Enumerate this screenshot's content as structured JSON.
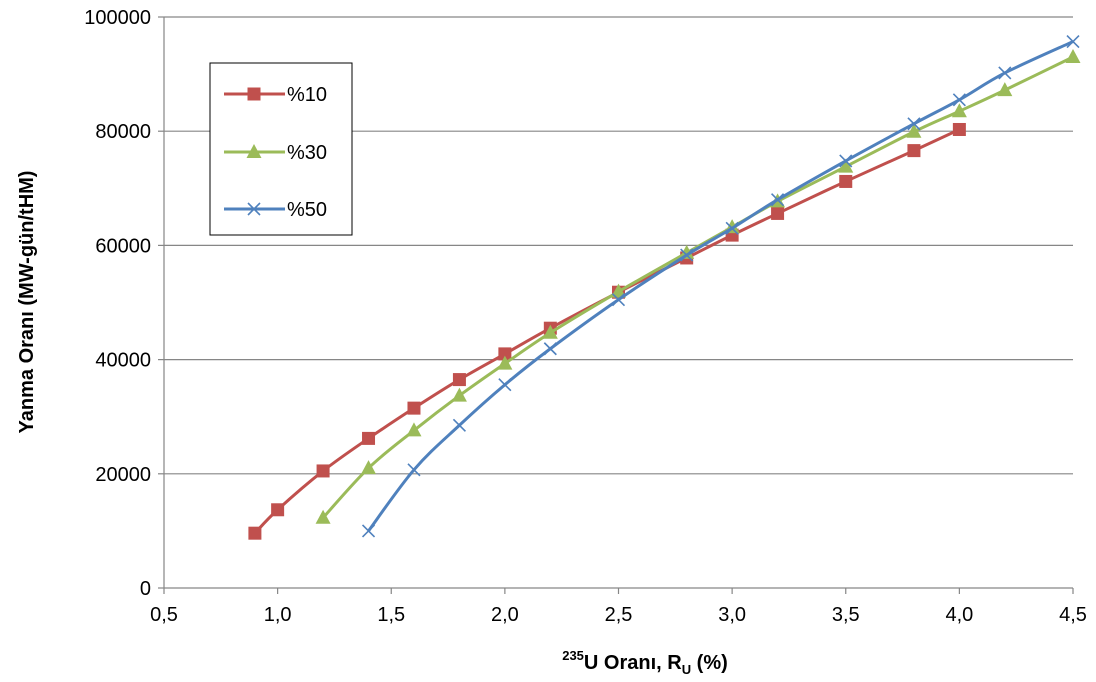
{
  "chart_data": {
    "type": "line",
    "xlabel": {
      "pre": "",
      "sup": "235",
      "mid": "U Oranı, R",
      "sub": "U",
      "post": " (%)"
    },
    "ylabel": "Yanma Oranı (MW-gün/tHM)",
    "xlim": [
      0.5,
      4.5
    ],
    "ylim": [
      0,
      100000
    ],
    "xticks": [
      0.5,
      1.0,
      1.5,
      2.0,
      2.5,
      3.0,
      3.5,
      4.0,
      4.5
    ],
    "xtick_labels": [
      "0,5",
      "1,0",
      "1,5",
      "2,0",
      "2,5",
      "3,0",
      "3,5",
      "4,0",
      "4,5"
    ],
    "yticks": [
      0,
      20000,
      40000,
      60000,
      80000,
      100000
    ],
    "ytick_labels": [
      "0",
      "20000",
      "40000",
      "60000",
      "80000",
      "100000"
    ],
    "grid": "horizontal",
    "legend_position": "top-left",
    "series": [
      {
        "name": "%10",
        "color": "#C0504D",
        "marker": "square",
        "x": [
          0.9,
          1.0,
          1.2,
          1.4,
          1.6,
          1.8,
          2.0,
          2.2,
          2.5,
          2.8,
          3.0,
          3.2,
          3.5,
          3.8,
          4.0
        ],
        "y": [
          9600,
          13700,
          20500,
          26200,
          31500,
          36500,
          41000,
          45500,
          51800,
          57800,
          61800,
          65600,
          71200,
          76600,
          80300
        ]
      },
      {
        "name": "%30",
        "color": "#9BBB59",
        "marker": "triangle",
        "x": [
          1.2,
          1.4,
          1.6,
          1.8,
          2.0,
          2.2,
          2.5,
          2.8,
          3.0,
          3.2,
          3.5,
          3.8,
          4.0,
          4.2,
          4.5
        ],
        "y": [
          12300,
          21000,
          27600,
          33700,
          39300,
          44700,
          51900,
          58700,
          63200,
          67700,
          73800,
          79900,
          83500,
          87200,
          93000
        ]
      },
      {
        "name": "%50",
        "color": "#4F81BD",
        "marker": "x",
        "x": [
          1.4,
          1.6,
          1.8,
          2.0,
          2.2,
          2.5,
          2.8,
          3.0,
          3.2,
          3.5,
          3.8,
          4.0,
          4.2,
          4.5
        ],
        "y": [
          10000,
          20700,
          28500,
          35600,
          41900,
          50500,
          58300,
          63000,
          68000,
          74800,
          81300,
          85500,
          90200,
          95700
        ]
      }
    ]
  }
}
